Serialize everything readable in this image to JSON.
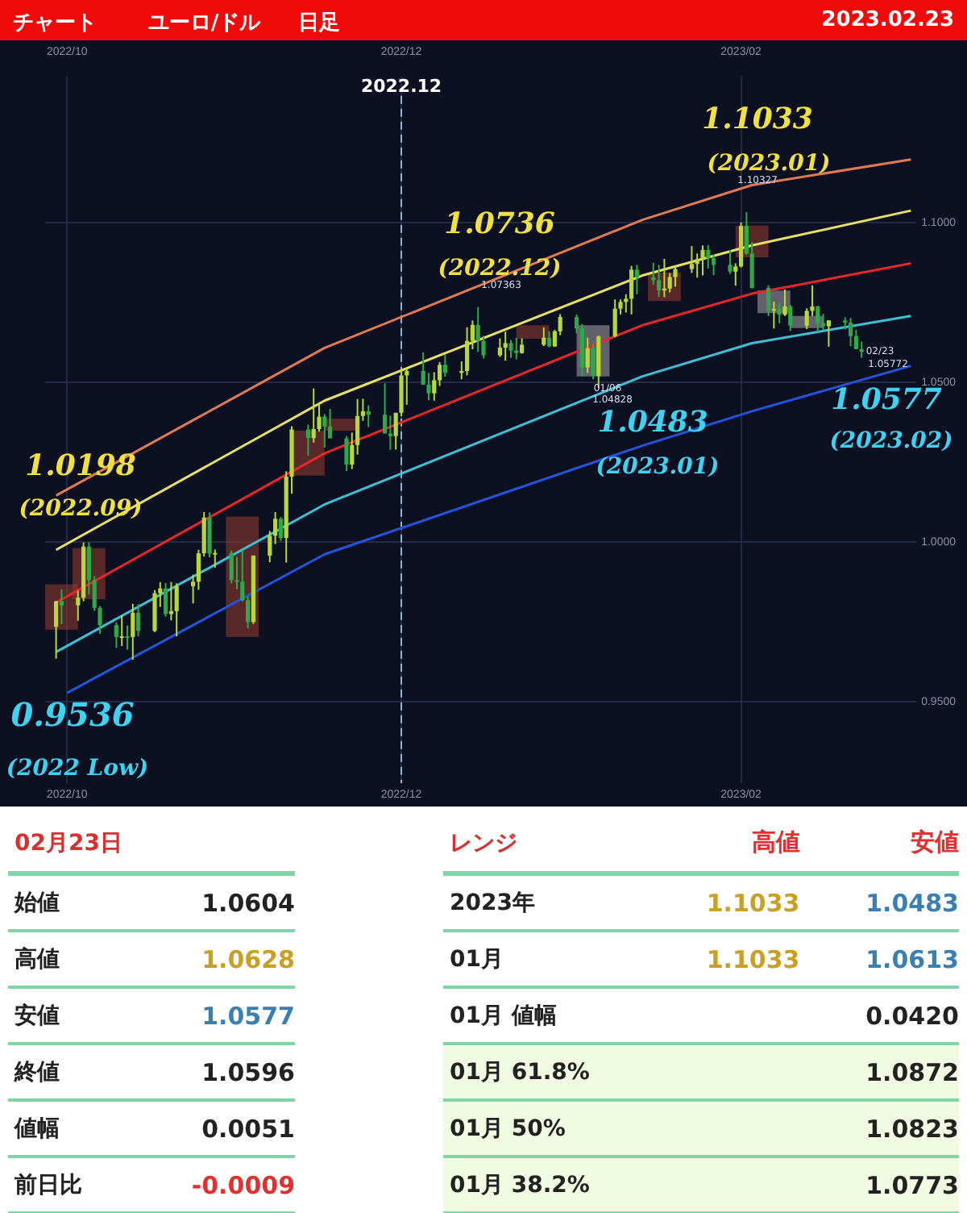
{
  "chart_data": [
    {
      "type": "candlestick",
      "title": "チャート",
      "subtitle": "ユーロ/ドル",
      "colors": [
        "#b8d83a",
        "#2fa84a",
        "#b8d83a",
        "#b8d83a",
        "#2fa84a",
        "#2fa84a",
        "#2fa84a",
        "#2fa84a",
        "#b8d83a",
        "#2fa84a",
        "#b8d83a",
        "#2fa84a",
        "#b8d83a",
        "#b8d83a",
        "#2fa84a",
        "#b8d83a",
        "#b8d83a",
        "#b8d83a",
        "#b8d83a",
        "#b8d83a",
        "#2fa84a",
        "#b8d83a",
        "#2fa84a",
        "#2fa84a",
        "#2fa84a",
        "#2fa84a",
        "#b8d83a",
        "#b8d83a",
        "#b8d83a",
        "#2fa84a",
        "#b8d83a",
        "#b8d83a",
        "#2fa84a",
        "#b8d83a",
        "#b8d83a",
        "#2fa84a",
        "#2fa84a",
        "#2fa84a",
        "#b8d83a",
        "#b8d83a",
        "#b8d83a",
        "#2fa84a",
        "#2fa84a",
        "#2fa84a",
        "#b8d83a",
        "#b8d83a",
        "#b8d83a",
        "#2fa84a",
        "#2fa84a",
        "#b8d83a",
        "#b8d83a",
        "#2fa84a",
        "#b8d83a",
        "#b8d83a",
        "#b8d83a",
        "#2fa84a",
        "#2fa84a",
        "#b8d83a",
        "#b8d83a",
        "#2fa84a",
        "#2fa84a",
        "#b8d83a",
        "#b8d83a",
        "#2fa84a",
        "#b8d83a",
        "#b8d83a",
        "#2fa84a",
        "#2fa84a",
        "#b8d83a",
        "#2fa84a",
        "#b8d83a",
        "#b8d83a",
        "#b8d83a",
        "#b8d83a",
        "#b8d83a",
        "#2fa84a",
        "#2fa84a",
        "#2fa84a",
        "#b8d83a",
        "#b8d83a",
        "#b8d83a",
        "#b8d83a",
        "#b8d83a",
        "#b8d83a",
        "#2fa84a",
        "#2fa84a",
        "#2fa84a",
        "#b8d83a",
        "#b8d83a",
        "#2fa84a",
        "#2fa84a",
        "#2fa84a",
        "#b8d83a",
        "#2fa84a",
        "#b8d83a",
        "#2fa84a",
        "#b8d83a",
        "#b8d83a",
        "#2fa84a",
        "#2fa84a",
        "#b8d83a",
        "#2fa84a",
        "#2fa84a",
        "#2fa84a",
        "#2fa84a"
      ],
      "x": [
        "2022-09-29",
        "2022-09-30",
        "2022-10-03",
        "2022-10-04",
        "2022-10-05",
        "2022-10-06",
        "2022-10-07",
        "2022-10-10",
        "2022-10-11",
        "2022-10-12",
        "2022-10-13",
        "2022-10-14",
        "2022-10-17",
        "2022-10-18",
        "2022-10-19",
        "2022-10-20",
        "2022-10-21",
        "2022-10-24",
        "2022-10-25",
        "2022-10-26",
        "2022-10-27",
        "2022-10-28",
        "2022-10-31",
        "2022-11-01",
        "2022-11-02",
        "2022-11-03",
        "2022-11-04",
        "2022-11-07",
        "2022-11-08",
        "2022-11-09",
        "2022-11-10",
        "2022-11-11",
        "2022-11-14",
        "2022-11-15",
        "2022-11-16",
        "2022-11-17",
        "2022-11-18",
        "2022-11-21",
        "2022-11-22",
        "2022-11-23",
        "2022-11-24",
        "2022-11-25",
        "2022-11-28",
        "2022-11-29",
        "2022-11-30",
        "2022-12-01",
        "2022-12-02",
        "2022-12-05",
        "2022-12-06",
        "2022-12-07",
        "2022-12-08",
        "2022-12-09",
        "2022-12-12",
        "2022-12-13",
        "2022-12-14",
        "2022-12-15",
        "2022-12-16",
        "2022-12-19",
        "2022-12-20",
        "2022-12-21",
        "2022-12-22",
        "2022-12-23",
        "2022-12-27",
        "2022-12-28",
        "2022-12-29",
        "2022-12-30",
        "2023-01-02",
        "2023-01-03",
        "2023-01-04",
        "2023-01-05",
        "2023-01-06",
        "2023-01-09",
        "2023-01-10",
        "2023-01-11",
        "2023-01-12",
        "2023-01-13",
        "2023-01-16",
        "2023-01-17",
        "2023-01-18",
        "2023-01-19",
        "2023-01-20",
        "2023-01-23",
        "2023-01-24",
        "2023-01-25",
        "2023-01-26",
        "2023-01-27",
        "2023-01-30",
        "2023-01-31",
        "2023-02-01",
        "2023-02-02",
        "2023-02-03",
        "2023-02-06",
        "2023-02-07",
        "2023-02-08",
        "2023-02-09",
        "2023-02-10",
        "2023-02-13",
        "2023-02-14",
        "2023-02-15",
        "2023-02-16",
        "2023-02-17",
        "2023-02-20",
        "2023-02-21",
        "2023-02-22",
        "2023-02-23"
      ],
      "ohlc": [
        [
          0.9735,
          0.9816,
          0.9635,
          0.9815
        ],
        [
          0.9815,
          0.9852,
          0.9743,
          0.9802
        ],
        [
          0.9802,
          0.9848,
          0.9754,
          0.9826
        ],
        [
          0.9826,
          0.9999,
          0.9815,
          0.9986
        ],
        [
          0.9986,
          0.9999,
          0.9836,
          0.9881
        ],
        [
          0.9881,
          0.9893,
          0.9785,
          0.9794
        ],
        [
          0.9794,
          0.98,
          0.9713,
          0.974
        ],
        [
          0.974,
          0.9749,
          0.9669,
          0.9703
        ],
        [
          0.9703,
          0.9771,
          0.9675,
          0.9705
        ],
        [
          0.9705,
          0.9739,
          0.9663,
          0.9703
        ],
        [
          0.9703,
          0.9807,
          0.9632,
          0.9779
        ],
        [
          0.9779,
          0.9806,
          0.9705,
          0.9722
        ],
        [
          0.9722,
          0.985,
          0.9718,
          0.984
        ],
        [
          0.984,
          0.9875,
          0.9797,
          0.9855
        ],
        [
          0.9855,
          0.9872,
          0.9767,
          0.9775
        ],
        [
          0.9775,
          0.9875,
          0.9755,
          0.9784
        ],
        [
          0.9784,
          0.9871,
          0.9705,
          0.9862
        ],
        [
          0.9862,
          0.9898,
          0.9808,
          0.9876
        ],
        [
          0.9876,
          0.9976,
          0.9851,
          0.9965
        ],
        [
          0.9965,
          1.0094,
          0.9955,
          1.0077
        ],
        [
          1.0077,
          1.0093,
          0.9952,
          0.9964
        ],
        [
          0.9964,
          0.9977,
          0.992,
          0.9966
        ],
        [
          0.9966,
          0.9974,
          0.9871,
          0.9881
        ],
        [
          0.9881,
          0.9954,
          0.9853,
          0.9876
        ],
        [
          0.9876,
          0.9975,
          0.9815,
          0.9818
        ],
        [
          0.9818,
          0.983,
          0.973,
          0.975
        ],
        [
          0.975,
          0.9958,
          0.9744,
          0.9958
        ],
        [
          0.9958,
          1.0035,
          0.9937,
          1.002
        ],
        [
          1.002,
          1.0094,
          0.9994,
          1.0073
        ],
        [
          1.0073,
          1.0079,
          1.0004,
          1.0013
        ],
        [
          1.0013,
          1.0222,
          0.9936,
          1.0205
        ],
        [
          1.0205,
          1.0363,
          1.0152,
          1.0353
        ],
        [
          1.0353,
          1.0368,
          1.0271,
          1.0326
        ],
        [
          1.0326,
          1.0481,
          1.0312,
          1.0354
        ],
        [
          1.0354,
          1.0434,
          1.0346,
          1.0393
        ],
        [
          1.0393,
          1.0401,
          1.0296,
          1.0362
        ],
        [
          1.0362,
          1.0417,
          1.0325,
          1.0325
        ],
        [
          1.0325,
          1.0332,
          1.0223,
          1.0243
        ],
        [
          1.0243,
          1.0343,
          1.0229,
          1.0304
        ],
        [
          1.0304,
          1.0448,
          1.0274,
          1.0395
        ],
        [
          1.0395,
          1.0449,
          1.038,
          1.041
        ],
        [
          1.041,
          1.0428,
          1.036,
          1.0399
        ],
        [
          1.0399,
          1.0497,
          1.034,
          1.034
        ],
        [
          1.034,
          1.0396,
          1.0289,
          1.0332
        ],
        [
          1.0332,
          1.0405,
          1.029,
          1.0405
        ],
        [
          1.0405,
          1.0545,
          1.0394,
          1.0522
        ],
        [
          1.0522,
          1.0545,
          1.043,
          1.0536
        ],
        [
          1.0536,
          1.0594,
          1.0492,
          1.0493
        ],
        [
          1.0493,
          1.053,
          1.0444,
          1.0466
        ],
        [
          1.0466,
          1.0532,
          1.0443,
          1.0507
        ],
        [
          1.0507,
          1.0564,
          1.0489,
          1.0555
        ],
        [
          1.0555,
          1.0587,
          1.0518,
          1.053
        ],
        [
          1.053,
          1.0566,
          1.051,
          1.0536
        ],
        [
          1.0536,
          1.0673,
          1.0522,
          1.063
        ],
        [
          1.063,
          1.0694,
          1.0604,
          1.068
        ],
        [
          1.068,
          1.0736,
          1.0595,
          1.063
        ],
        [
          1.063,
          1.0646,
          1.0575,
          1.0585
        ],
        [
          1.0585,
          1.0638,
          1.058,
          1.0609
        ],
        [
          1.0609,
          1.0659,
          1.0568,
          1.0623
        ],
        [
          1.0623,
          1.0633,
          1.0577,
          1.06
        ],
        [
          1.06,
          1.064,
          1.0572,
          1.0592
        ],
        [
          1.0592,
          1.0638,
          1.059,
          1.0618
        ],
        [
          1.0618,
          1.0672,
          1.0614,
          1.064
        ],
        [
          1.064,
          1.066,
          1.061,
          1.0613
        ],
        [
          1.0613,
          1.0665,
          1.0611,
          1.066
        ],
        [
          1.066,
          1.0714,
          1.0648,
          1.0705
        ],
        [
          1.0705,
          1.0713,
          1.0654,
          1.0669
        ],
        [
          1.0669,
          1.0683,
          1.0519,
          1.0547
        ],
        [
          1.0547,
          1.064,
          1.053,
          1.0607
        ],
        [
          1.0607,
          1.0622,
          1.051,
          1.052
        ],
        [
          1.052,
          1.0647,
          1.0483,
          1.0644
        ],
        [
          1.0644,
          1.076,
          1.0641,
          1.0731
        ],
        [
          1.0731,
          1.076,
          1.0713,
          1.0752
        ],
        [
          1.0752,
          1.0776,
          1.0719,
          1.0762
        ],
        [
          1.0762,
          1.0865,
          1.0713,
          1.0853
        ],
        [
          1.0853,
          1.0868,
          1.0776,
          1.0829
        ],
        [
          1.0829,
          1.0875,
          1.0806,
          1.082
        ],
        [
          1.082,
          1.0868,
          1.0767,
          1.0788
        ],
        [
          1.0788,
          1.0887,
          1.0767,
          1.0794
        ],
        [
          1.0794,
          1.0843,
          1.0782,
          1.083
        ],
        [
          1.083,
          1.0861,
          1.08,
          1.0855
        ],
        [
          1.0855,
          1.0927,
          1.0843,
          1.0871
        ],
        [
          1.0871,
          1.0904,
          1.0828,
          1.0886
        ],
        [
          1.0886,
          1.0929,
          1.0835,
          1.0915
        ],
        [
          1.0915,
          1.093,
          1.0857,
          1.0889
        ],
        [
          1.0889,
          1.09,
          1.0836,
          1.0868
        ],
        [
          1.0868,
          1.0915,
          1.084,
          1.0847
        ],
        [
          1.0847,
          1.0873,
          1.0803,
          1.0863
        ],
        [
          1.0863,
          1.1001,
          1.086,
          1.099
        ],
        [
          1.099,
          1.1033,
          1.09,
          1.0904
        ],
        [
          1.0904,
          1.0939,
          1.0794,
          1.0796
        ],
        [
          1.0796,
          1.0804,
          1.0708,
          1.0726
        ],
        [
          1.0726,
          1.0753,
          1.0669,
          1.073
        ],
        [
          1.073,
          1.0749,
          1.0685,
          1.0712
        ],
        [
          1.0712,
          1.0791,
          1.0708,
          1.0738
        ],
        [
          1.0738,
          1.0743,
          1.0661,
          1.0678
        ],
        [
          1.0678,
          1.0732,
          1.0667,
          1.0724
        ],
        [
          1.0724,
          1.0804,
          1.0708,
          1.0738
        ],
        [
          1.0738,
          1.074,
          1.0657,
          1.0686
        ],
        [
          1.0686,
          1.0715,
          1.0662,
          1.0676
        ],
        [
          1.0676,
          1.0695,
          1.0612,
          1.0694
        ],
        [
          1.0694,
          1.0704,
          1.0666,
          1.0687
        ],
        [
          1.0687,
          1.0702,
          1.0613,
          1.0645
        ],
        [
          1.0645,
          1.0665,
          1.0604,
          1.0604
        ],
        [
          1.0604,
          1.0628,
          1.0577,
          1.0596
        ]
      ],
      "series": [
        {
          "type": "line",
          "color": "#e07a50",
          "x": [
            "2022-09-29",
            "2022-11-17",
            "2023-01-14",
            "2023-02-03",
            "2023-03-04"
          ],
          "values": [
            1.0146,
            1.0608,
            1.1009,
            1.1118,
            1.1198
          ]
        },
        {
          "type": "line",
          "color": "#e8e060",
          "x": [
            "2022-09-29",
            "2022-11-17",
            "2023-01-14",
            "2023-02-03",
            "2023-03-04"
          ],
          "values": [
            0.9976,
            1.0443,
            1.0835,
            1.0929,
            1.1038
          ]
        },
        {
          "type": "line",
          "color": "#e8262a",
          "x": [
            "2022-09-29",
            "2022-11-17",
            "2023-01-14",
            "2023-02-03",
            "2023-03-04"
          ],
          "values": [
            0.9811,
            1.0278,
            1.0679,
            1.0778,
            1.0873
          ]
        },
        {
          "type": "line",
          "color": "#3cc0d8",
          "x": [
            "2022-09-29",
            "2022-11-17",
            "2023-01-14",
            "2023-02-03",
            "2023-03-04"
          ],
          "values": [
            0.9656,
            1.0118,
            1.0519,
            1.0623,
            1.0708
          ]
        },
        {
          "type": "line",
          "color": "#2255dd",
          "x": [
            "2022-10-01",
            "2022-11-17",
            "2023-01-14",
            "2023-02-03",
            "2023-03-04"
          ],
          "values": [
            0.9528,
            0.9962,
            1.0302,
            1.041,
            1.0552
          ]
        },
        {
          "type": "bar",
          "x": [
            "2022-09-30",
            "2022-10-05",
            "2022-11-02",
            "2022-11-14",
            "2022-11-20",
            "2022-12-25",
            "2023-01-05",
            "2023-01-18",
            "2023-02-03",
            "2023-02-07",
            "2023-02-13"
          ],
          "base": [
            0.9726,
            0.9821,
            0.9703,
            1.0208,
            1.0349,
            1.0637,
            1.0519,
            1.0755,
            1.0892,
            1.0717,
            1.067
          ],
          "values": [
            0.0142,
            0.016,
            0.0377,
            0.0141,
            0.0038,
            0.0042,
            0.016,
            0.0089,
            0.0099,
            0.0071,
            0.0038
          ],
          "colors": [
            "#8b3a2e",
            "#8b3a2e",
            "#8b3a2e",
            "#8b3a2e",
            "#8b3a2e",
            "#8b3a2e",
            "#9a9aa0",
            "#8b3a2e",
            "#8b3a2e",
            "#9a9aa0",
            "#9a9aa0"
          ]
        }
      ],
      "xlim": [
        "2022-09-27",
        "2023-03-05"
      ],
      "xticks": [
        {
          "value": "2022-10-01",
          "label": "2022/10"
        },
        {
          "value": "2022-12-01",
          "label": "2022/12"
        },
        {
          "value": "2023-02-01",
          "label": "2023/02"
        }
      ],
      "x2lim": [
        "2022-09-27",
        "2023-03-05"
      ],
      "x2ticks": [
        {
          "value": "2022-10-01",
          "label": "2022/10"
        },
        {
          "value": "2022-12-01",
          "label": "2022/12"
        },
        {
          "value": "2023-02-01",
          "label": "2023/02"
        }
      ],
      "ylim": [
        0.9245,
        1.1458
      ],
      "yticks": [
        {
          "value": 0.95,
          "label": "0.9500"
        },
        {
          "value": 1,
          "label": "1.0000"
        },
        {
          "value": 1.05,
          "label": "1.0500"
        },
        {
          "value": 1.1,
          "label": "1.1000"
        }
      ],
      "grid": true,
      "legend": false,
      "ref_lines": [
        {
          "axis": "x",
          "value": "2022-12-01",
          "label": "2022.12",
          "color": "#8ab4d8",
          "line_style": "dashed"
        }
      ],
      "annotations": [
        "日足",
        "2023.02.23",
        "1.0198",
        "(2022.09)",
        "0.9536",
        "(2022 Low)",
        "1.0736",
        "(2022.12)",
        "1.1033",
        "(2023.01)",
        "1.0483",
        "(2023.01)",
        "1.0577",
        "(2023.02)",
        "1.10327",
        "1.07363",
        "01/06",
        "1.04828",
        "02/23",
        "1.05772"
      ]
    },
    {
      "type": "other",
      "title": "02月23日",
      "annotations": [
        "始値",
        "1.0604",
        "高値",
        "1.0628",
        "安値",
        "1.0577",
        "終値",
        "1.0596",
        "値幅",
        "0.0051",
        "前日比",
        "-0.0009"
      ],
      "colors": [
        null,
        null,
        null,
        "#c8a028",
        null,
        "#3a7fb0",
        null,
        null,
        null,
        null,
        null,
        "#e03030"
      ]
    },
    {
      "type": "other",
      "title": "レンジ",
      "annotations": [
        "高値",
        "安値",
        "2023年",
        "1.1033",
        "1.0483",
        "01月",
        "1.1033",
        "1.0613",
        "01月 値幅",
        null,
        "0.0420",
        "01月  61.8%",
        null,
        "1.0872",
        "01月  50%",
        null,
        "1.0823",
        "01月  38.2%",
        null,
        "1.0773"
      ],
      "colors": [
        "#e03030",
        "#e03030",
        null,
        "#c8a028",
        "#3a7fb0",
        null,
        "#c8a028",
        "#3a7fb0",
        null,
        null,
        null,
        null,
        null,
        null,
        null,
        null,
        null,
        null,
        null,
        null
      ]
    }
  ]
}
